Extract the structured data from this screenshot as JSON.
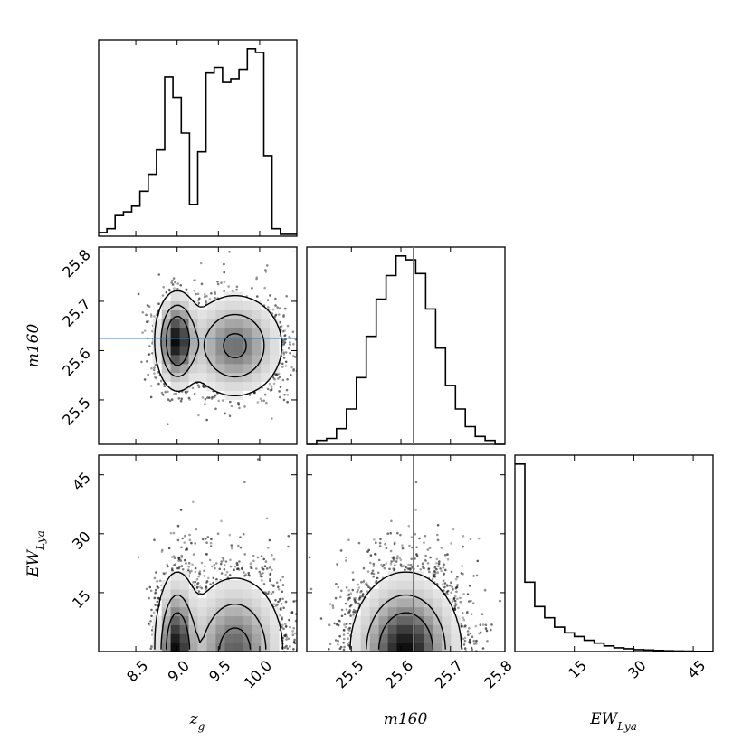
{
  "chart_data": {
    "type": "scatter",
    "figure": "corner",
    "parameters": [
      {
        "key": "zg",
        "label": "z",
        "sub": "g",
        "range": [
          8.05,
          10.45
        ],
        "ticks": [
          8.5,
          9.0,
          9.5,
          10.0
        ],
        "tick_labels": [
          "8.5",
          "9.0",
          "9.5",
          "10.0"
        ]
      },
      {
        "key": "m160",
        "label": "m160",
        "sub": "",
        "range": [
          25.41,
          25.81
        ],
        "ticks": [
          25.5,
          25.6,
          25.7,
          25.8
        ],
        "tick_labels": [
          "25.5",
          "25.6",
          "25.7",
          "25.8"
        ]
      },
      {
        "key": "EWLya",
        "label": "EW",
        "sub": "Lya",
        "range": [
          0,
          50
        ],
        "ticks": [
          15,
          30,
          45
        ],
        "tick_labels": [
          "15",
          "30",
          "45"
        ]
      }
    ],
    "truth_values": {
      "m160": 25.625
    },
    "histograms": [
      {
        "param": "zg",
        "bin_edges": [
          8.05,
          8.15,
          8.25,
          8.35,
          8.45,
          8.55,
          8.65,
          8.75,
          8.85,
          8.95,
          9.05,
          9.15,
          9.25,
          9.35,
          9.45,
          9.55,
          9.65,
          9.75,
          9.85,
          9.95,
          10.05,
          10.15,
          10.25,
          10.35,
          10.45
        ],
        "counts": [
          0.02,
          0.04,
          0.11,
          0.13,
          0.16,
          0.24,
          0.33,
          0.46,
          0.85,
          0.74,
          0.55,
          0.17,
          0.45,
          0.87,
          0.9,
          0.82,
          0.84,
          0.89,
          1.0,
          0.98,
          0.43,
          0.04,
          0.01,
          0.01
        ]
      },
      {
        "param": "m160",
        "bin_edges": [
          25.41,
          25.43,
          25.45,
          25.47,
          25.49,
          25.51,
          25.53,
          25.55,
          25.57,
          25.59,
          25.61,
          25.63,
          25.65,
          25.67,
          25.69,
          25.71,
          25.73,
          25.75,
          25.77,
          25.79,
          25.81
        ],
        "counts": [
          0.0,
          0.02,
          0.03,
          0.08,
          0.18,
          0.34,
          0.55,
          0.74,
          0.86,
          0.96,
          0.94,
          0.87,
          0.69,
          0.49,
          0.3,
          0.18,
          0.09,
          0.04,
          0.02,
          0.0
        ]
      },
      {
        "param": "EWLya",
        "bin_edges": [
          0,
          2.5,
          5,
          7.5,
          10,
          12.5,
          15,
          17.5,
          20,
          22.5,
          25,
          27.5,
          30,
          32.5,
          35,
          37.5,
          40,
          42.5,
          45,
          47.5,
          50
        ],
        "counts": [
          1.0,
          0.37,
          0.24,
          0.18,
          0.13,
          0.1,
          0.08,
          0.06,
          0.045,
          0.03,
          0.02,
          0.015,
          0.01,
          0.008,
          0.006,
          0.004,
          0.003,
          0.002,
          0.001,
          0.001
        ]
      }
    ],
    "pairs": [
      {
        "x": "zg",
        "y": "m160",
        "modes": [
          {
            "x": 9.0,
            "y": 25.62,
            "sx": 0.12,
            "sy": 0.045,
            "w": 0.38
          },
          {
            "x": 9.7,
            "y": 25.61,
            "sx": 0.28,
            "sy": 0.05,
            "w": 0.62
          }
        ]
      },
      {
        "x": "zg",
        "y": "EWLya",
        "modes": [
          {
            "x": 9.0,
            "y": 0,
            "sx": 0.12,
            "sy": 9,
            "w": 0.38
          },
          {
            "x": 9.7,
            "y": 0,
            "sx": 0.28,
            "sy": 9,
            "w": 0.62
          }
        ]
      },
      {
        "x": "m160",
        "y": "EWLya",
        "modes": [
          {
            "x": 25.61,
            "y": 0,
            "sx": 0.05,
            "sy": 9,
            "w": 1.0
          }
        ]
      }
    ],
    "grid": false,
    "legend": "none"
  }
}
